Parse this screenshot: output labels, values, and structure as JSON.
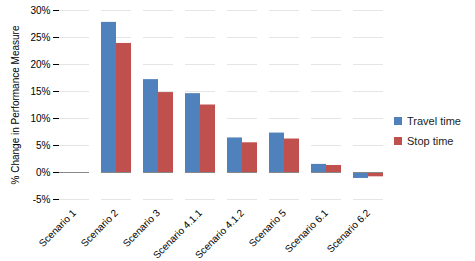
{
  "chart_data": {
    "type": "bar",
    "categories": [
      "Scenario 1",
      "Scenario 2",
      "Scenario 3",
      "Scenario 4.1.1",
      "Scenario 4.1.2",
      "Scenario 5",
      "Scenario 6.1",
      "Scenario 6.2"
    ],
    "series": [
      {
        "name": "Travel time",
        "color": "#4F81BD",
        "values": [
          0,
          27.8,
          17.2,
          14.6,
          6.4,
          7.3,
          1.5,
          -1.1
        ]
      },
      {
        "name": "Stop time",
        "color": "#C0504D",
        "values": [
          0,
          23.9,
          14.8,
          12.5,
          5.5,
          6.2,
          1.3,
          -0.8
        ]
      }
    ],
    "y_label": "% Change in Performance Measure",
    "ylim": [
      -5,
      30
    ],
    "yticks": [
      {
        "value": -5,
        "label": "-5%"
      },
      {
        "value": 0,
        "label": "0%"
      },
      {
        "value": 5,
        "label": "5%"
      },
      {
        "value": 10,
        "label": "10%"
      },
      {
        "value": 15,
        "label": "15%"
      },
      {
        "value": 20,
        "label": "20%"
      },
      {
        "value": 25,
        "label": "25%"
      },
      {
        "value": 30,
        "label": "30%"
      }
    ],
    "grid": true,
    "legend": "right"
  }
}
